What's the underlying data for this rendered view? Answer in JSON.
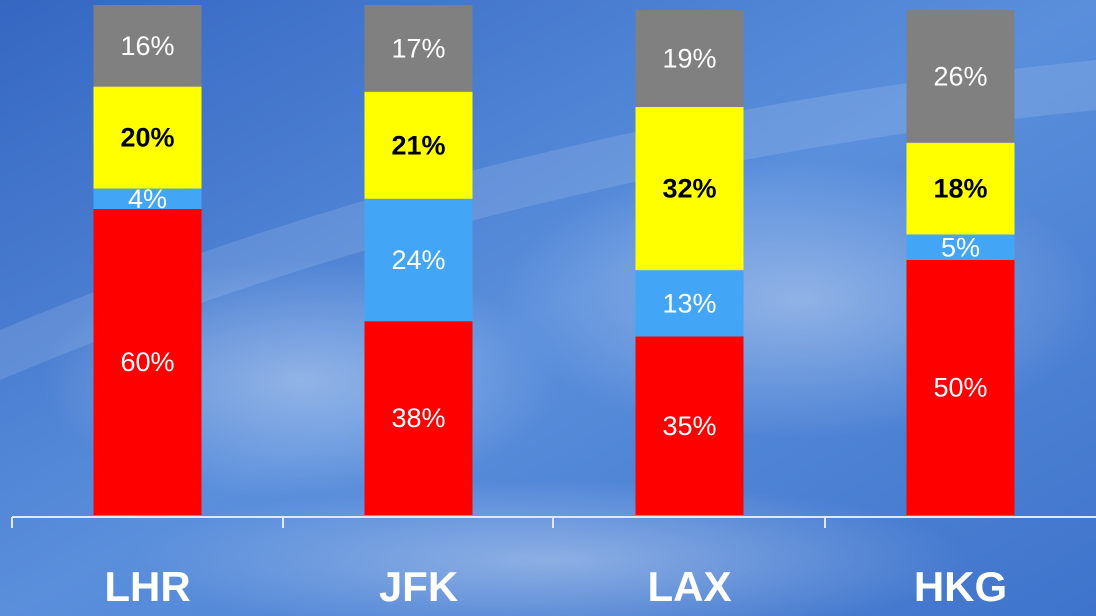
{
  "chart_data": {
    "type": "stacked_bar",
    "categories": [
      "LHR",
      "JFK",
      "LAX",
      "HKG"
    ],
    "series": [
      {
        "color": "#ff0000",
        "label_color": "#ffffff",
        "values": [
          60,
          38,
          35,
          50
        ],
        "value_labels": [
          "60%",
          "38%",
          "35%",
          "50%"
        ]
      },
      {
        "color": "#42a5f5",
        "label_color": "#ffffff",
        "values": [
          4,
          24,
          13,
          5
        ],
        "value_labels": [
          "4%",
          "24%",
          "13%",
          "5%"
        ]
      },
      {
        "color": "#ffff00",
        "label_color": "#000000",
        "values": [
          20,
          21,
          32,
          18
        ],
        "value_labels": [
          "20%",
          "21%",
          "32%",
          "18%"
        ]
      },
      {
        "color": "#808080",
        "label_color": "#ffffff",
        "values": [
          16,
          17,
          19,
          26
        ],
        "value_labels": [
          "16%",
          "17%",
          "19%",
          "26%"
        ]
      }
    ]
  }
}
